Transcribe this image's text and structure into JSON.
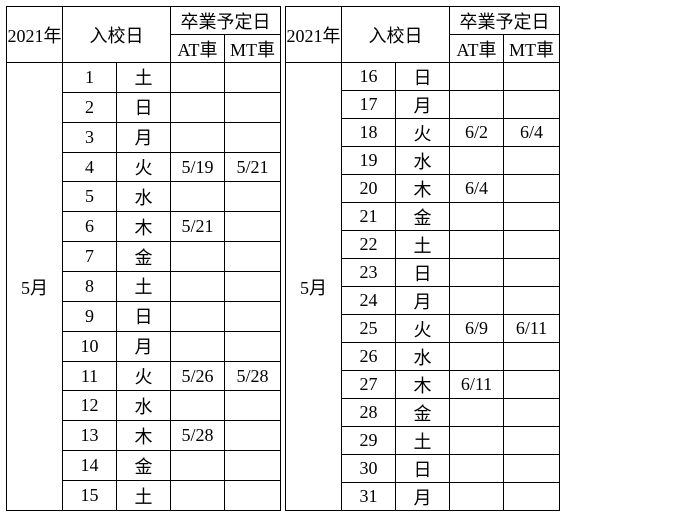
{
  "labels": {
    "year": "2021年",
    "enroll": "入校日",
    "grad": "卒業予定日",
    "at": "AT車",
    "mt": "MT車",
    "month": "5月"
  },
  "colors": {
    "bg": "#ffffff",
    "border": "#000000"
  },
  "left": {
    "rows": [
      {
        "d": "1",
        "w": "土",
        "at": "",
        "mt": ""
      },
      {
        "d": "2",
        "w": "日",
        "at": "",
        "mt": ""
      },
      {
        "d": "3",
        "w": "月",
        "at": "",
        "mt": ""
      },
      {
        "d": "4",
        "w": "火",
        "at": "5/19",
        "mt": "5/21"
      },
      {
        "d": "5",
        "w": "水",
        "at": "",
        "mt": ""
      },
      {
        "d": "6",
        "w": "木",
        "at": "5/21",
        "mt": ""
      },
      {
        "d": "7",
        "w": "金",
        "at": "",
        "mt": ""
      },
      {
        "d": "8",
        "w": "土",
        "at": "",
        "mt": ""
      },
      {
        "d": "9",
        "w": "日",
        "at": "",
        "mt": ""
      },
      {
        "d": "10",
        "w": "月",
        "at": "",
        "mt": ""
      },
      {
        "d": "11",
        "w": "火",
        "at": "5/26",
        "mt": "5/28"
      },
      {
        "d": "12",
        "w": "水",
        "at": "",
        "mt": ""
      },
      {
        "d": "13",
        "w": "木",
        "at": "5/28",
        "mt": ""
      },
      {
        "d": "14",
        "w": "金",
        "at": "",
        "mt": ""
      },
      {
        "d": "15",
        "w": "土",
        "at": "",
        "mt": ""
      }
    ]
  },
  "right": {
    "rows": [
      {
        "d": "16",
        "w": "日",
        "at": "",
        "mt": ""
      },
      {
        "d": "17",
        "w": "月",
        "at": "",
        "mt": ""
      },
      {
        "d": "18",
        "w": "火",
        "at": "6/2",
        "mt": "6/4"
      },
      {
        "d": "19",
        "w": "水",
        "at": "",
        "mt": ""
      },
      {
        "d": "20",
        "w": "木",
        "at": "6/4",
        "mt": ""
      },
      {
        "d": "21",
        "w": "金",
        "at": "",
        "mt": ""
      },
      {
        "d": "22",
        "w": "土",
        "at": "",
        "mt": ""
      },
      {
        "d": "23",
        "w": "日",
        "at": "",
        "mt": ""
      },
      {
        "d": "24",
        "w": "月",
        "at": "",
        "mt": ""
      },
      {
        "d": "25",
        "w": "火",
        "at": "6/9",
        "mt": "6/11"
      },
      {
        "d": "26",
        "w": "水",
        "at": "",
        "mt": ""
      },
      {
        "d": "27",
        "w": "木",
        "at": "6/11",
        "mt": ""
      },
      {
        "d": "28",
        "w": "金",
        "at": "",
        "mt": ""
      },
      {
        "d": "29",
        "w": "土",
        "at": "",
        "mt": ""
      },
      {
        "d": "30",
        "w": "日",
        "at": "",
        "mt": ""
      },
      {
        "d": "31",
        "w": "月",
        "at": "",
        "mt": ""
      }
    ]
  }
}
